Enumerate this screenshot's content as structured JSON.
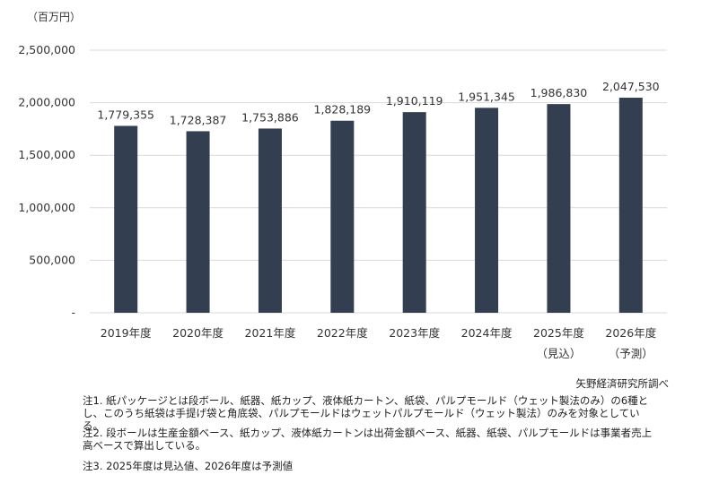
{
  "chart_data": {
    "type": "bar",
    "unit_label": "（百万円）",
    "categories": [
      "2019年度",
      "2020年度",
      "2021年度",
      "2022年度",
      "2023年度",
      "2024年度",
      "2025年度",
      "2026年度"
    ],
    "category_sublabels": [
      "",
      "",
      "",
      "",
      "",
      "",
      "（見込）",
      "（予測）"
    ],
    "values": [
      1779355,
      1728387,
      1753886,
      1828189,
      1910119,
      1951345,
      1986830,
      2047530
    ],
    "value_labels": [
      "1,779,355",
      "1,728,387",
      "1,753,886",
      "1,828,189",
      "1,910,119",
      "1,951,345",
      "1,986,830",
      "2,047,530"
    ],
    "ylim": [
      0,
      2500000
    ],
    "yticks": [
      0,
      500000,
      1000000,
      1500000,
      2000000,
      2500000
    ],
    "ytick_labels": [
      "-",
      "500,000",
      "1,000,000",
      "1,500,000",
      "2,000,000",
      "2,500,000"
    ],
    "grid": true,
    "bar_color": "#333f50",
    "grid_color": "#d9d9d9"
  },
  "source": "矢野経済研究所調べ",
  "notes": [
    "注1. 紙パッケージとは段ボール、紙器、紙カップ、液体紙カートン、紙袋、パルプモールド（ウェット製法のみ）の6種とし、このうち紙袋は手提げ袋と角底袋、パルプモールドはウェットパルプモールド（ウェット製法）のみを対象としている。",
    "注2. 段ボールは生産金額ベース、紙カップ、液体紙カートンは出荷金額ベース、紙器、紙袋、パルプモールドは事業者売上高ベースで算出している。",
    "注3. 2025年度は見込値、2026年度は予測値"
  ]
}
